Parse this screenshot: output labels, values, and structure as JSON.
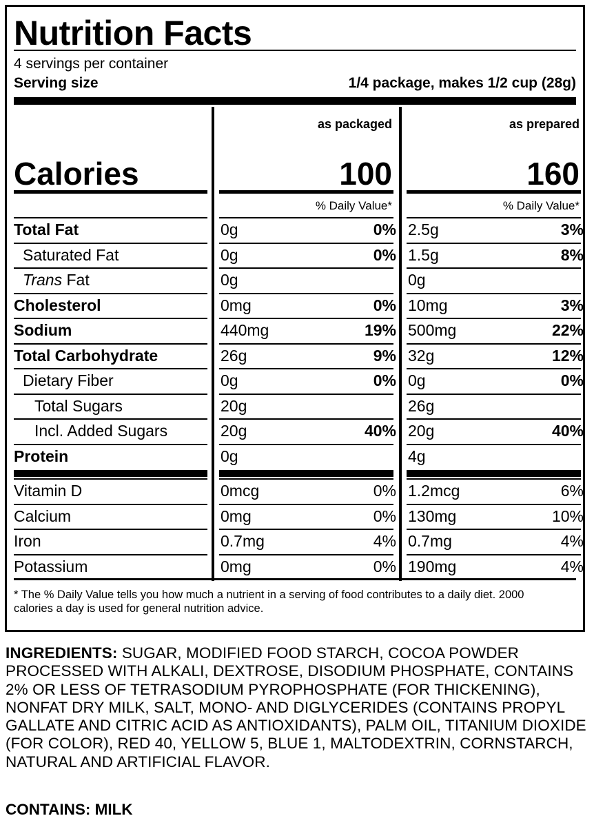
{
  "title": "Nutrition Facts",
  "servings_per_container": "4 servings per container",
  "serving_size_label": "Serving size",
  "serving_size_value": "1/4 package, makes 1/2 cup (28g)",
  "columns": [
    "as packaged",
    "as prepared"
  ],
  "calories_label": "Calories",
  "calories": [
    "100",
    "160"
  ],
  "dv_header": "% Daily Value*",
  "nutrients": [
    {
      "name": "Total Fat",
      "bold": true,
      "indent": 0,
      "v1": "0g",
      "p1": "0%",
      "v2": "2.5g",
      "p2": "3%"
    },
    {
      "name": "Saturated Fat",
      "bold": false,
      "indent": 1,
      "v1": "0g",
      "p1": "0%",
      "v2": "1.5g",
      "p2": "8%"
    },
    {
      "name_italic": "Trans",
      "name": " Fat",
      "bold": false,
      "indent": 1,
      "v1": "0g",
      "p1": "",
      "v2": "0g",
      "p2": ""
    },
    {
      "name": "Cholesterol",
      "bold": true,
      "indent": 0,
      "v1": "0mg",
      "p1": "0%",
      "v2": "10mg",
      "p2": "3%"
    },
    {
      "name": "Sodium",
      "bold": true,
      "indent": 0,
      "v1": "440mg",
      "p1": "19%",
      "v2": "500mg",
      "p2": "22%"
    },
    {
      "name": "Total Carbohydrate",
      "bold": true,
      "indent": 0,
      "v1": "26g",
      "p1": "9%",
      "v2": "32g",
      "p2": "12%"
    },
    {
      "name": "Dietary Fiber",
      "bold": false,
      "indent": 1,
      "v1": "0g",
      "p1": "0%",
      "v2": "0g",
      "p2": "0%"
    },
    {
      "name": "Total Sugars",
      "bold": false,
      "indent": 2,
      "v1": "20g",
      "p1": "",
      "v2": "26g",
      "p2": ""
    },
    {
      "name": "Incl. Added Sugars",
      "bold": false,
      "indent": 2,
      "v1": "20g",
      "p1": "40%",
      "v2": "20g",
      "p2": "40%"
    },
    {
      "name": "Protein",
      "bold": true,
      "indent": 0,
      "v1": "0g",
      "p1": "",
      "v2": "4g",
      "p2": ""
    }
  ],
  "vitamins": [
    {
      "name": "Vitamin D",
      "v1": "0mcg",
      "p1": "0%",
      "v2": "1.2mcg",
      "p2": "6%"
    },
    {
      "name": "Calcium",
      "v1": "0mg",
      "p1": "0%",
      "v2": "130mg",
      "p2": "10%"
    },
    {
      "name": "Iron",
      "v1": "0.7mg",
      "p1": "4%",
      "v2": "0.7mg",
      "p2": "4%"
    },
    {
      "name": "Potassium",
      "v1": "0mg",
      "p1": "0%",
      "v2": "190mg",
      "p2": "4%"
    }
  ],
  "footnote": "* The % Daily Value tells you how much a nutrient in a serving of food contributes to a daily diet. 2000 calories a day is used for general nutrition advice.",
  "ingredients_label": "INGREDIENTS:",
  "ingredients_text": " SUGAR, MODIFIED FOOD STARCH, COCOA POWDER PROCESSED WITH ALKALI, DEXTROSE, DISODIUM PHOSPHATE, CONTAINS 2% OR LESS OF TETRASODIUM PYROPHOSPHATE (FOR THICKENING), NONFAT DRY MILK, SALT, MONO- AND DIGLYCERIDES (CONTAINS PROPYL GALLATE AND CITRIC ACID AS ANTIOXIDANTS), PALM OIL, TITANIUM DIOXIDE (FOR COLOR), RED 40, YELLOW 5, BLUE 1, MALTODEXTRIN, CORNSTARCH, NATURAL AND ARTIFICIAL FLAVOR.",
  "contains": "CONTAINS: MILK"
}
